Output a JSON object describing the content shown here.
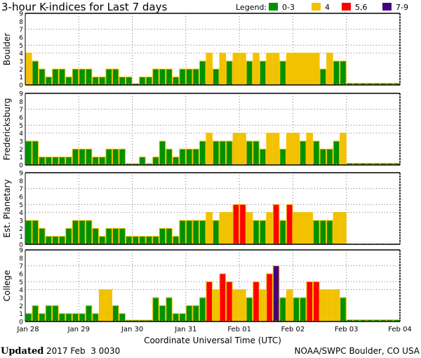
{
  "chart_data": {
    "type": "bar",
    "title": "3-hour K-indices for Last 7 days",
    "xlabel": "Coordinate Universal Time (UTC)",
    "x_ticks": [
      "Jan 28",
      "Jan 29",
      "Jan 30",
      "Jan 31",
      "Feb 01",
      "Feb 02",
      "Feb 03",
      "Feb 04"
    ],
    "bins_per_day": 8,
    "ylim": [
      0,
      9
    ],
    "y_ticks": [
      "0",
      "1",
      "2",
      "3",
      "4",
      "5",
      "6",
      "7",
      "8",
      "9"
    ],
    "grid": {
      "horizontal_at": [
        4,
        5,
        7
      ],
      "vertical": "day boundaries",
      "style": "dotted"
    },
    "legend": {
      "label": "Legend:",
      "placement": "top-right",
      "entries": [
        {
          "label": "0-3",
          "color": "#009100",
          "min": 0,
          "max": 3
        },
        {
          "label": "4",
          "color": "#f2c200",
          "min": 4,
          "max": 4
        },
        {
          "label": "5,6",
          "color": "#ff0000",
          "min": 5,
          "max": 6
        },
        {
          "label": "7-9",
          "color": "#44007f",
          "min": 7,
          "max": 9
        }
      ]
    },
    "series": [
      {
        "name": "Boulder",
        "empty_marker": true,
        "values": [
          4,
          3,
          2,
          1,
          2,
          2,
          1,
          2,
          2,
          2,
          1,
          1,
          2,
          2,
          1,
          1,
          0,
          1,
          1,
          2,
          2,
          2,
          1,
          2,
          2,
          2,
          3,
          4,
          2,
          4,
          3,
          4,
          4,
          3,
          4,
          3,
          4,
          4,
          3,
          4,
          4,
          4,
          4,
          4,
          2,
          4,
          3,
          3,
          null,
          null,
          null,
          null,
          null,
          null,
          null,
          null
        ]
      },
      {
        "name": "Fredericksburg",
        "empty_marker": true,
        "values": [
          3,
          3,
          1,
          1,
          1,
          1,
          1,
          2,
          2,
          2,
          1,
          1,
          2,
          2,
          2,
          0,
          0,
          1,
          0,
          1,
          3,
          2,
          1,
          2,
          2,
          2,
          3,
          4,
          3,
          3,
          3,
          4,
          4,
          3,
          3,
          2,
          4,
          4,
          2,
          4,
          4,
          3,
          4,
          3,
          2,
          2,
          3,
          4,
          null,
          null,
          null,
          null,
          null,
          null,
          null,
          null
        ]
      },
      {
        "name": "Est. Planetary",
        "empty_marker": false,
        "values": [
          3,
          3,
          2,
          1,
          1,
          1,
          2,
          3,
          3,
          3,
          2,
          1,
          2,
          2,
          2,
          1,
          1,
          1,
          1,
          1,
          2,
          2,
          1,
          3,
          3,
          3,
          3,
          4,
          3,
          4,
          4,
          5,
          5,
          4,
          3,
          3,
          4,
          5,
          3,
          5,
          4,
          4,
          4,
          3,
          3,
          3,
          4,
          4,
          null,
          null,
          null,
          null,
          null,
          null,
          null,
          null
        ]
      },
      {
        "name": "College",
        "empty_marker": true,
        "values": [
          1,
          2,
          1,
          2,
          2,
          1,
          1,
          1,
          1,
          2,
          1,
          4,
          4,
          2,
          1,
          0,
          0,
          0,
          0,
          3,
          2,
          3,
          1,
          1,
          2,
          2,
          3,
          5,
          4,
          6,
          5,
          4,
          4,
          3,
          5,
          4,
          6,
          7,
          3,
          4,
          3,
          3,
          5,
          5,
          4,
          4,
          4,
          3,
          null,
          null,
          null,
          null,
          null,
          null,
          null,
          null
        ]
      }
    ]
  },
  "footer": {
    "updated_label": "Updated",
    "updated_value": "2017 Feb  3 0030",
    "source": "NOAA/SWPC Boulder, CO USA"
  }
}
